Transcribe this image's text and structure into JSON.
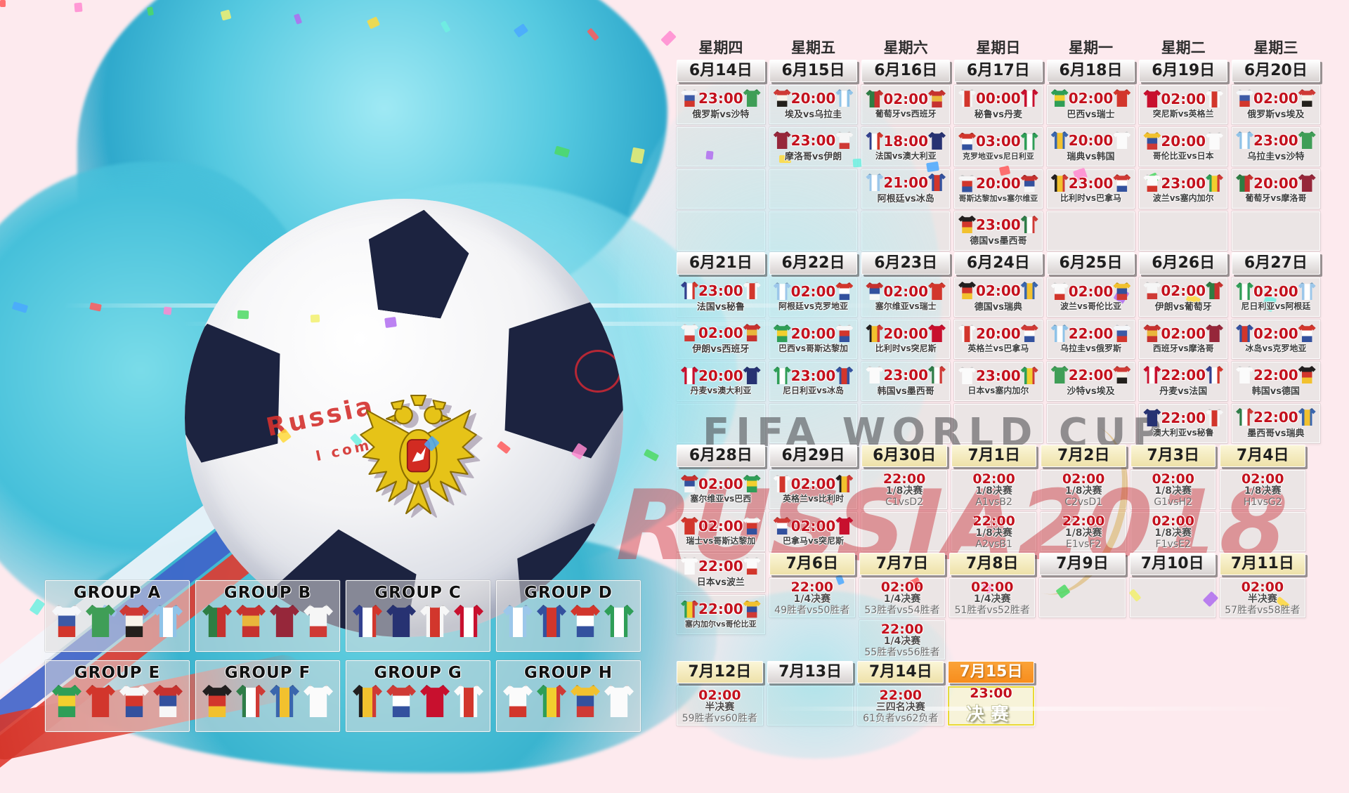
{
  "watermarks": {
    "line1": "FIFA WORLD CUP",
    "line2": "RUSSIA2018"
  },
  "ball_text": {
    "line1": "Russia",
    "line2": "I come in"
  },
  "palette": {
    "time_red": "#c3111d",
    "header_orange": "#f78d1d",
    "header_cream": "#f5ecc0",
    "splash_cyan": "#46c0da",
    "bg_pink": "#fdeaee",
    "pentagon_navy": "#1c2340"
  },
  "weekdays": [
    "星期四",
    "星期五",
    "星期六",
    "星期日",
    "星期一",
    "星期二",
    "星期三"
  ],
  "teams": {
    "俄罗斯": {
      "c": [
        "#f5f7fa",
        "#3c5aa6",
        "#d2362c"
      ]
    },
    "沙特": {
      "c": [
        "#3f9e57"
      ]
    },
    "埃及": {
      "c": [
        "#cf3a35",
        "#f7f3ea",
        "#23201c"
      ]
    },
    "乌拉圭": {
      "c": [
        "#8fc3e8",
        "#ffffff",
        "#8fc3e8"
      ],
      "d": "v"
    },
    "葡萄牙": {
      "c": [
        "#2e7d43",
        "#c6322f"
      ],
      "d": "v"
    },
    "西班牙": {
      "c": [
        "#c6322f",
        "#e9b63c",
        "#c6322f"
      ]
    },
    "摩洛哥": {
      "c": [
        "#96273a"
      ]
    },
    "伊朗": {
      "c": [
        "#f6f6f6",
        "#f6f6f6",
        "#cf3a35"
      ]
    },
    "法国": {
      "c": [
        "#32418f",
        "#ffffff",
        "#d2362c"
      ],
      "d": "v"
    },
    "澳大利亚": {
      "c": [
        "#273272"
      ]
    },
    "秘鲁": {
      "c": [
        "#f7f7f7",
        "#d2362c",
        "#f7f7f7"
      ],
      "d": "v"
    },
    "丹麦": {
      "c": [
        "#c8102e",
        "#ffffff",
        "#c8102e"
      ],
      "d": "v"
    },
    "阿根廷": {
      "c": [
        "#9cc7ea",
        "#ffffff",
        "#9cc7ea"
      ],
      "d": "v"
    },
    "冰岛": {
      "c": [
        "#33519e",
        "#d2362c",
        "#33519e"
      ],
      "d": "v"
    },
    "克罗地亚": {
      "c": [
        "#d2362c",
        "#ffffff",
        "#33519e"
      ]
    },
    "尼日利亚": {
      "c": [
        "#2f9e57",
        "#ffffff",
        "#2f9e57"
      ],
      "d": "v"
    },
    "巴西": {
      "c": [
        "#2f9e57",
        "#f2cf2e",
        "#2f9e57"
      ]
    },
    "瑞士": {
      "c": [
        "#d2362c"
      ]
    },
    "哥斯达黎加": {
      "c": [
        "#f7f7f7",
        "#d2362c",
        "#33519e"
      ]
    },
    "塞尔维亚": {
      "c": [
        "#c6322f",
        "#33519e",
        "#f7f7f7"
      ]
    },
    "德国": {
      "c": [
        "#221f1f",
        "#d2362c",
        "#f2c12e"
      ]
    },
    "墨西哥": {
      "c": [
        "#2f7d48",
        "#ffffff",
        "#cf3a35"
      ],
      "d": "v"
    },
    "瑞典": {
      "c": [
        "#3a66ad",
        "#f2c12e",
        "#3a66ad"
      ],
      "d": "v"
    },
    "韩国": {
      "c": [
        "#fbfbfb"
      ]
    },
    "比利时": {
      "c": [
        "#221f1f",
        "#f2c12e",
        "#cf3a35"
      ],
      "d": "v"
    },
    "巴拿马": {
      "c": [
        "#cf3a35",
        "#ffffff",
        "#33519e"
      ]
    },
    "突尼斯": {
      "c": [
        "#c8102e"
      ]
    },
    "英格兰": {
      "c": [
        "#fbfbfb",
        "#d2362c",
        "#fbfbfb"
      ],
      "d": "v"
    },
    "波兰": {
      "c": [
        "#fbfbfb",
        "#fbfbfb",
        "#d2362c"
      ]
    },
    "塞内加尔": {
      "c": [
        "#2f9e57",
        "#f2cf2e",
        "#cf3a35"
      ],
      "d": "v"
    },
    "哥伦比亚": {
      "c": [
        "#f2c12e",
        "#33519e",
        "#cf3a35"
      ]
    },
    "日本": {
      "c": [
        "#fbfbfb"
      ]
    }
  },
  "bands": [
    {
      "has_weekdays": true,
      "dates": [
        {
          "t": "6月14日",
          "s": "gray"
        },
        {
          "t": "6月15日",
          "s": "gray"
        },
        {
          "t": "6月16日",
          "s": "gray"
        },
        {
          "t": "6月17日",
          "s": "gray"
        },
        {
          "t": "6月18日",
          "s": "gray"
        },
        {
          "t": "6月19日",
          "s": "gray"
        },
        {
          "t": "6月20日",
          "s": "gray"
        }
      ],
      "rows": [
        [
          {
            "t": "23:00",
            "h": "俄罗斯",
            "a": "沙特",
            "n": "俄罗斯vs沙特"
          },
          {
            "t": "20:00",
            "h": "埃及",
            "a": "乌拉圭",
            "n": "埃及vs乌拉圭"
          },
          {
            "t": "02:00",
            "h": "葡萄牙",
            "a": "西班牙",
            "n": "葡萄牙vs西班牙"
          },
          {
            "t": "00:00",
            "h": "秘鲁",
            "a": "丹麦",
            "n": "秘鲁vs丹麦"
          },
          {
            "t": "02:00",
            "h": "巴西",
            "a": "瑞士",
            "n": "巴西vs瑞士"
          },
          {
            "t": "02:00",
            "h": "突尼斯",
            "a": "英格兰",
            "n": "突尼斯vs英格兰"
          },
          {
            "t": "02:00",
            "h": "俄罗斯",
            "a": "埃及",
            "n": "俄罗斯vs埃及"
          }
        ],
        [
          {
            "e": 1
          },
          {
            "t": "23:00",
            "h": "摩洛哥",
            "a": "伊朗",
            "n": "摩洛哥vs伊朗"
          },
          {
            "t": "18:00",
            "h": "法国",
            "a": "澳大利亚",
            "n": "法国vs澳大利亚"
          },
          {
            "t": "03:00",
            "h": "克罗地亚",
            "a": "尼日利亚",
            "n": "克罗地亚vs尼日利亚"
          },
          {
            "t": "20:00",
            "h": "瑞典",
            "a": "韩国",
            "n": "瑞典vs韩国"
          },
          {
            "t": "20:00",
            "h": "哥伦比亚",
            "a": "日本",
            "n": "哥伦比亚vs日本"
          },
          {
            "t": "23:00",
            "h": "乌拉圭",
            "a": "沙特",
            "n": "乌拉圭vs沙特"
          }
        ],
        [
          {
            "e": 1
          },
          {
            "e": 1
          },
          {
            "t": "21:00",
            "h": "阿根廷",
            "a": "冰岛",
            "n": "阿根廷vs冰岛"
          },
          {
            "t": "20:00",
            "h": "哥斯达黎加",
            "a": "塞尔维亚",
            "n": "哥斯达黎加vs塞尔维亚"
          },
          {
            "t": "23:00",
            "h": "比利时",
            "a": "巴拿马",
            "n": "比利时vs巴拿马"
          },
          {
            "t": "23:00",
            "h": "波兰",
            "a": "塞内加尔",
            "n": "波兰vs塞内加尔"
          },
          {
            "t": "20:00",
            "h": "葡萄牙",
            "a": "摩洛哥",
            "n": "葡萄牙vs摩洛哥"
          }
        ],
        [
          {
            "e": 1
          },
          {
            "e": 1
          },
          {
            "e": 1
          },
          {
            "t": "23:00",
            "h": "德国",
            "a": "墨西哥",
            "n": "德国vs墨西哥"
          },
          {
            "e": 1
          },
          {
            "e": 1
          },
          {
            "e": 1
          }
        ]
      ]
    },
    {
      "dates": [
        {
          "t": "6月21日",
          "s": "gray"
        },
        {
          "t": "6月22日",
          "s": "gray"
        },
        {
          "t": "6月23日",
          "s": "gray"
        },
        {
          "t": "6月24日",
          "s": "gray"
        },
        {
          "t": "6月25日",
          "s": "gray"
        },
        {
          "t": "6月26日",
          "s": "gray"
        },
        {
          "t": "6月27日",
          "s": "gray"
        }
      ],
      "rows": [
        [
          {
            "t": "23:00",
            "h": "法国",
            "a": "秘鲁",
            "n": "法国vs秘鲁"
          },
          {
            "t": "02:00",
            "h": "阿根廷",
            "a": "克罗地亚",
            "n": "阿根廷vs克罗地亚"
          },
          {
            "t": "02:00",
            "h": "塞尔维亚",
            "a": "瑞士",
            "n": "塞尔维亚vs瑞士"
          },
          {
            "t": "02:00",
            "h": "德国",
            "a": "瑞典",
            "n": "德国vs瑞典"
          },
          {
            "t": "02:00",
            "h": "波兰",
            "a": "哥伦比亚",
            "n": "波兰vs哥伦比亚"
          },
          {
            "t": "02:00",
            "h": "伊朗",
            "a": "葡萄牙",
            "n": "伊朗vs葡萄牙"
          },
          {
            "t": "02:00",
            "h": "尼日利亚",
            "a": "阿根廷",
            "n": "尼日利亚vs阿根廷"
          }
        ],
        [
          {
            "t": "02:00",
            "h": "伊朗",
            "a": "西班牙",
            "n": "伊朗vs西班牙"
          },
          {
            "t": "20:00",
            "h": "巴西",
            "a": "哥斯达黎加",
            "n": "巴西vs哥斯达黎加"
          },
          {
            "t": "20:00",
            "h": "比利时",
            "a": "突尼斯",
            "n": "比利时vs突尼斯"
          },
          {
            "t": "20:00",
            "h": "英格兰",
            "a": "巴拿马",
            "n": "英格兰vs巴拿马"
          },
          {
            "t": "22:00",
            "h": "乌拉圭",
            "a": "俄罗斯",
            "n": "乌拉圭vs俄罗斯"
          },
          {
            "t": "02:00",
            "h": "西班牙",
            "a": "摩洛哥",
            "n": "西班牙vs摩洛哥"
          },
          {
            "t": "02:00",
            "h": "冰岛",
            "a": "克罗地亚",
            "n": "冰岛vs克罗地亚"
          }
        ],
        [
          {
            "t": "20:00",
            "h": "丹麦",
            "a": "澳大利亚",
            "n": "丹麦vs澳大利亚"
          },
          {
            "t": "23:00",
            "h": "尼日利亚",
            "a": "冰岛",
            "n": "尼日利亚vs冰岛"
          },
          {
            "t": "23:00",
            "h": "韩国",
            "a": "墨西哥",
            "n": "韩国vs墨西哥"
          },
          {
            "t": "23:00",
            "h": "日本",
            "a": "塞内加尔",
            "n": "日本vs塞内加尔"
          },
          {
            "t": "22:00",
            "h": "沙特",
            "a": "埃及",
            "n": "沙特vs埃及"
          },
          {
            "t": "22:00",
            "h": "丹麦",
            "a": "法国",
            "n": "丹麦vs法国"
          },
          {
            "t": "22:00",
            "h": "韩国",
            "a": "德国",
            "n": "韩国vs德国"
          }
        ],
        [
          {
            "e": 1
          },
          {
            "e": 1
          },
          {
            "e": 1
          },
          {
            "e": 1
          },
          {
            "e": 1
          },
          {
            "t": "22:00",
            "h": "澳大利亚",
            "a": "秘鲁",
            "n": "澳大利亚vs秘鲁"
          },
          {
            "t": "22:00",
            "h": "墨西哥",
            "a": "瑞典",
            "n": "墨西哥vs瑞典"
          }
        ]
      ]
    },
    {
      "dates": [
        {
          "t": "6月28日",
          "s": "gray"
        },
        {
          "t": "6月29日",
          "s": "gray"
        },
        {
          "t": "6月30日",
          "s": "cream"
        },
        {
          "t": "7月1日",
          "s": "cream"
        },
        {
          "t": "7月2日",
          "s": "cream"
        },
        {
          "t": "7月3日",
          "s": "cream"
        },
        {
          "t": "7月4日",
          "s": "cream"
        }
      ],
      "rows": [
        [
          {
            "t": "02:00",
            "h": "塞尔维亚",
            "a": "巴西",
            "n": "塞尔维亚vs巴西"
          },
          {
            "t": "02:00",
            "h": "英格兰",
            "a": "比利时",
            "n": "英格兰vs比利时"
          },
          {
            "t": "22:00",
            "stage": "1/8决赛",
            "m": "C1vsD2"
          },
          {
            "t": "02:00",
            "stage": "1/8决赛",
            "m": "A1vsB2"
          },
          {
            "t": "02:00",
            "stage": "1/8决赛",
            "m": "C2vsD1"
          },
          {
            "t": "02:00",
            "stage": "1/8决赛",
            "m": "G1vsH2"
          },
          {
            "t": "02:00",
            "stage": "1/8决赛",
            "m": "H1vsG2"
          }
        ],
        [
          {
            "t": "02:00",
            "h": "瑞士",
            "a": "哥斯达黎加",
            "n": "瑞士vs哥斯达黎加"
          },
          {
            "t": "02:00",
            "h": "巴拿马",
            "a": "突尼斯",
            "n": "巴拿马vs突尼斯"
          },
          {
            "e": 1
          },
          {
            "t": "22:00",
            "stage": "1/8决赛",
            "m": "A2vsB1"
          },
          {
            "t": "22:00",
            "stage": "1/8决赛",
            "m": "E1vsF2"
          },
          {
            "t": "02:00",
            "stage": "1/8决赛",
            "m": "F1vsE2"
          },
          {
            "e": 1
          }
        ]
      ]
    },
    {
      "col1_extra": [
        {
          "t": "22:00",
          "h": "日本",
          "a": "波兰",
          "n": "日本vs波兰"
        },
        {
          "t": "22:00",
          "h": "塞内加尔",
          "a": "哥伦比亚",
          "n": "塞内加尔vs哥伦比亚"
        }
      ],
      "dates": [
        null,
        {
          "t": "7月6日",
          "s": "cream"
        },
        {
          "t": "7月7日",
          "s": "cream"
        },
        {
          "t": "7月8日",
          "s": "cream"
        },
        {
          "t": "7月9日",
          "s": "gray"
        },
        {
          "t": "7月10日",
          "s": "gray"
        },
        {
          "t": "7月11日",
          "s": "cream"
        }
      ],
      "rows": [
        [
          null,
          {
            "t": "22:00",
            "stage": "1/4决赛",
            "m": "49胜者vs50胜者"
          },
          {
            "t": "02:00",
            "stage": "1/4决赛",
            "m": "53胜者vs54胜者"
          },
          {
            "t": "02:00",
            "stage": "1/4决赛",
            "m": "51胜者vs52胜者"
          },
          {
            "e": 1
          },
          {
            "e": 1
          },
          {
            "t": "02:00",
            "stage": "半决赛",
            "m": "57胜者vs58胜者"
          }
        ],
        [
          null,
          null,
          {
            "t": "22:00",
            "stage": "1/4决赛",
            "m": "55胜者vs56胜者"
          },
          null,
          null,
          null,
          null
        ]
      ]
    },
    {
      "dates": [
        {
          "t": "7月12日",
          "s": "cream"
        },
        {
          "t": "7月13日",
          "s": "gray"
        },
        {
          "t": "7月14日",
          "s": "cream"
        },
        {
          "t": "7月15日",
          "s": "orange"
        },
        null,
        null,
        null
      ],
      "rows": [
        [
          {
            "t": "02:00",
            "stage": "半决赛",
            "m": "59胜者vs60胜者"
          },
          {
            "e": 1
          },
          {
            "t": "22:00",
            "stage": "三四名决赛",
            "m": "61负者vs62负者"
          },
          {
            "final": 1,
            "t": "23:00",
            "stage": "决赛"
          },
          null,
          null,
          null
        ]
      ]
    }
  ],
  "groups": [
    {
      "title": "GROUP A",
      "teams": [
        "俄罗斯",
        "沙特",
        "埃及",
        "乌拉圭"
      ]
    },
    {
      "title": "GROUP B",
      "teams": [
        "葡萄牙",
        "西班牙",
        "摩洛哥",
        "伊朗"
      ]
    },
    {
      "title": "GROUP C",
      "teams": [
        "法国",
        "澳大利亚",
        "秘鲁",
        "丹麦"
      ]
    },
    {
      "title": "GROUP D",
      "teams": [
        "阿根廷",
        "冰岛",
        "克罗地亚",
        "尼日利亚"
      ]
    },
    {
      "title": "GROUP E",
      "teams": [
        "巴西",
        "瑞士",
        "哥斯达黎加",
        "塞尔维亚"
      ]
    },
    {
      "title": "GROUP F",
      "teams": [
        "德国",
        "墨西哥",
        "瑞典",
        "韩国"
      ]
    },
    {
      "title": "GROUP G",
      "teams": [
        "比利时",
        "巴拿马",
        "突尼斯",
        "英格兰"
      ]
    },
    {
      "title": "GROUP H",
      "teams": [
        "波兰",
        "塞内加尔",
        "哥伦比亚",
        "日本"
      ]
    }
  ],
  "confetti_colors": [
    "#ff5a5a",
    "#ffd93b",
    "#4cd964",
    "#4aa8ff",
    "#b06cf0",
    "#ff8ad0",
    "#6ef0e0",
    "#f2f06e"
  ]
}
